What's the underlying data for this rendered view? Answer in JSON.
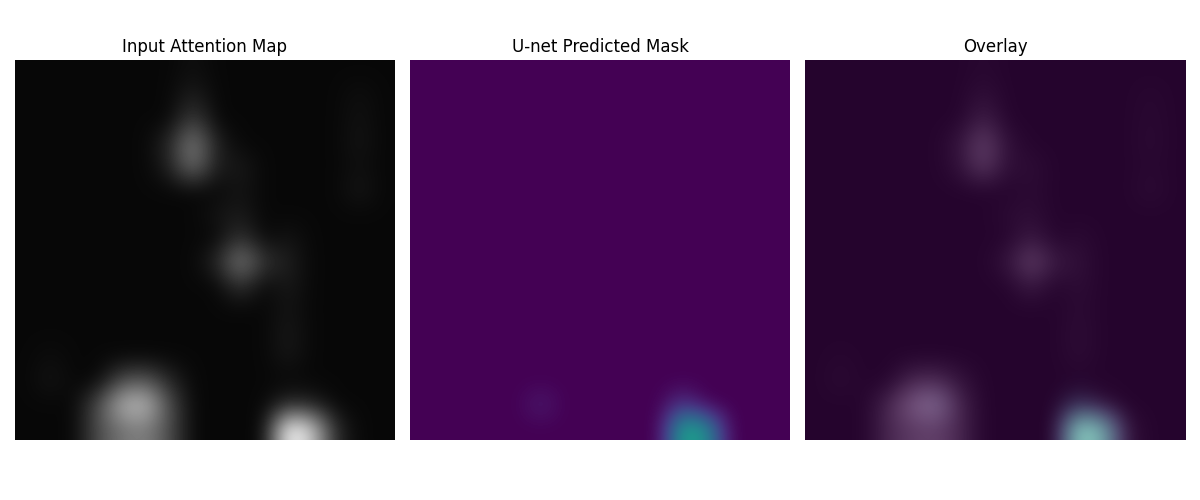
{
  "chart_data": [
    {
      "type": "heatmap",
      "title": "Input Attention Map",
      "color": "gray",
      "tick_labels": false,
      "value_range": [
        0,
        1
      ],
      "cells": [
        [
          0.03,
          0.03,
          0.03,
          0.03,
          0.03,
          0.03,
          0.03,
          0.06,
          0.03,
          0.03,
          0.03,
          0.03,
          0.03,
          0.03,
          0.03,
          0.03
        ],
        [
          0.03,
          0.03,
          0.03,
          0.03,
          0.03,
          0.03,
          0.03,
          0.12,
          0.03,
          0.03,
          0.03,
          0.03,
          0.03,
          0.03,
          0.06,
          0.03
        ],
        [
          0.03,
          0.03,
          0.03,
          0.03,
          0.03,
          0.03,
          0.03,
          0.25,
          0.03,
          0.03,
          0.03,
          0.03,
          0.03,
          0.03,
          0.07,
          0.03
        ],
        [
          0.03,
          0.03,
          0.03,
          0.03,
          0.03,
          0.03,
          0.15,
          0.5,
          0.12,
          0.03,
          0.03,
          0.03,
          0.03,
          0.03,
          0.08,
          0.03
        ],
        [
          0.03,
          0.03,
          0.03,
          0.03,
          0.03,
          0.03,
          0.12,
          0.45,
          0.1,
          0.1,
          0.03,
          0.03,
          0.03,
          0.03,
          0.06,
          0.03
        ],
        [
          0.03,
          0.03,
          0.03,
          0.03,
          0.03,
          0.03,
          0.03,
          0.03,
          0.03,
          0.08,
          0.03,
          0.03,
          0.03,
          0.03,
          0.09,
          0.03
        ],
        [
          0.03,
          0.03,
          0.03,
          0.03,
          0.03,
          0.03,
          0.03,
          0.03,
          0.08,
          0.1,
          0.03,
          0.03,
          0.03,
          0.03,
          0.03,
          0.03
        ],
        [
          0.03,
          0.03,
          0.03,
          0.03,
          0.03,
          0.03,
          0.03,
          0.03,
          0.03,
          0.2,
          0.03,
          0.08,
          0.03,
          0.03,
          0.03,
          0.03
        ],
        [
          0.03,
          0.03,
          0.03,
          0.03,
          0.03,
          0.03,
          0.03,
          0.03,
          0.15,
          0.5,
          0.2,
          0.12,
          0.03,
          0.03,
          0.03,
          0.03
        ],
        [
          0.03,
          0.03,
          0.03,
          0.03,
          0.03,
          0.03,
          0.03,
          0.03,
          0.03,
          0.2,
          0.03,
          0.1,
          0.03,
          0.03,
          0.03,
          0.03
        ],
        [
          0.03,
          0.03,
          0.03,
          0.03,
          0.03,
          0.03,
          0.03,
          0.03,
          0.03,
          0.03,
          0.03,
          0.08,
          0.03,
          0.03,
          0.03,
          0.03
        ],
        [
          0.03,
          0.03,
          0.03,
          0.03,
          0.03,
          0.03,
          0.03,
          0.03,
          0.03,
          0.03,
          0.03,
          0.1,
          0.03,
          0.03,
          0.03,
          0.03
        ],
        [
          0.03,
          0.05,
          0.03,
          0.03,
          0.03,
          0.03,
          0.03,
          0.03,
          0.03,
          0.03,
          0.03,
          0.09,
          0.03,
          0.03,
          0.03,
          0.03
        ],
        [
          0.03,
          0.08,
          0.03,
          0.03,
          0.3,
          0.35,
          0.15,
          0.03,
          0.03,
          0.03,
          0.03,
          0.03,
          0.03,
          0.03,
          0.03,
          0.03
        ],
        [
          0.03,
          0.03,
          0.03,
          0.3,
          0.7,
          0.75,
          0.3,
          0.03,
          0.03,
          0.03,
          0.03,
          0.15,
          0.12,
          0.03,
          0.03,
          0.03
        ],
        [
          0.03,
          0.03,
          0.03,
          0.3,
          0.45,
          0.5,
          0.3,
          0.03,
          0.03,
          0.03,
          0.03,
          1.0,
          0.8,
          0.15,
          0.03,
          0.03
        ]
      ]
    },
    {
      "type": "heatmap",
      "title": "U-net Predicted Mask",
      "color": "viridis",
      "tick_labels": false,
      "value_range": [
        0,
        1
      ],
      "cells": [
        [
          0,
          0,
          0,
          0,
          0,
          0,
          0,
          0,
          0,
          0,
          0,
          0,
          0,
          0,
          0,
          0
        ],
        [
          0,
          0,
          0,
          0,
          0,
          0,
          0,
          0,
          0,
          0,
          0,
          0,
          0,
          0,
          0,
          0
        ],
        [
          0,
          0,
          0,
          0,
          0,
          0,
          0,
          0,
          0,
          0,
          0,
          0,
          0,
          0,
          0,
          0
        ],
        [
          0,
          0,
          0,
          0,
          0,
          0,
          0,
          0,
          0,
          0,
          0,
          0,
          0,
          0,
          0,
          0
        ],
        [
          0,
          0,
          0,
          0,
          0,
          0,
          0,
          0,
          0,
          0,
          0,
          0,
          0,
          0,
          0,
          0
        ],
        [
          0,
          0,
          0,
          0,
          0,
          0,
          0,
          0,
          0,
          0,
          0,
          0,
          0,
          0,
          0,
          0
        ],
        [
          0,
          0,
          0,
          0,
          0,
          0,
          0,
          0,
          0,
          0,
          0,
          0,
          0,
          0,
          0,
          0
        ],
        [
          0,
          0,
          0,
          0,
          0,
          0,
          0,
          0,
          0,
          0,
          0,
          0,
          0,
          0,
          0,
          0
        ],
        [
          0,
          0,
          0,
          0,
          0,
          0,
          0,
          0,
          0,
          0,
          0,
          0,
          0,
          0,
          0,
          0
        ],
        [
          0,
          0,
          0,
          0,
          0,
          0,
          0,
          0,
          0,
          0,
          0,
          0,
          0,
          0,
          0,
          0
        ],
        [
          0,
          0,
          0,
          0,
          0,
          0,
          0,
          0,
          0,
          0,
          0,
          0,
          0,
          0,
          0,
          0
        ],
        [
          0,
          0,
          0,
          0,
          0,
          0,
          0,
          0,
          0,
          0,
          0,
          0,
          0,
          0,
          0,
          0
        ],
        [
          0,
          0,
          0,
          0,
          0,
          0,
          0,
          0,
          0,
          0,
          0,
          0,
          0,
          0,
          0,
          0
        ],
        [
          0,
          0,
          0,
          0,
          0,
          0,
          0,
          0,
          0,
          0,
          0,
          0,
          0,
          0,
          0,
          0
        ],
        [
          0,
          0,
          0,
          0,
          0,
          0.08,
          0,
          0,
          0,
          0,
          0,
          0.15,
          0,
          0,
          0,
          0
        ],
        [
          0,
          0,
          0,
          0,
          0,
          0,
          0,
          0,
          0,
          0,
          0,
          0.6,
          0.5,
          0,
          0,
          0
        ]
      ]
    },
    {
      "type": "overlay",
      "title": "Overlay",
      "tick_labels": false
    }
  ]
}
